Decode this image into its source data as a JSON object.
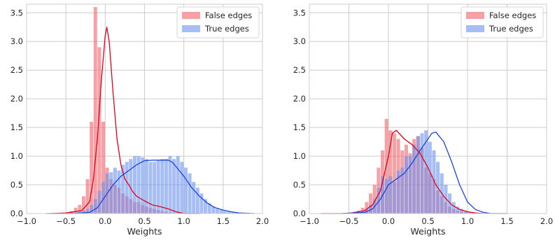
{
  "colors": {
    "false_edges": "#f0626b",
    "false_edges_line": "#e3001b",
    "true_edges": "#6d93ee",
    "true_edges_line": "#1a44e0",
    "grid": "#cccccc",
    "axes_edge": "#cccccc"
  },
  "chart_data": [
    {
      "type": "histogram",
      "xlabel": "Weights",
      "xlim": [
        -1.0,
        2.0
      ],
      "ylim": [
        0,
        3.65
      ],
      "x_ticks": [
        "−1.0",
        "−0.5",
        "0.0",
        "0.5",
        "1.0",
        "1.5",
        "2.0"
      ],
      "y_ticks": [
        "0.0",
        "0.5",
        "1.0",
        "1.5",
        "2.0",
        "2.5",
        "3.0",
        "3.5"
      ],
      "grid": true,
      "legend_position": "top-right",
      "series": [
        {
          "name": "False edges",
          "bin_start": -0.7,
          "bin_width": 0.05,
          "values": [
            0.0,
            0.0,
            0.01,
            0.01,
            0.02,
            0.04,
            0.1,
            0.15,
            0.3,
            0.6,
            1.6,
            3.6,
            2.9,
            1.6,
            0.8,
            0.6,
            0.5,
            0.45,
            0.35,
            0.3,
            0.25,
            0.2,
            0.2,
            0.15,
            0.12,
            0.1,
            0.08,
            0.06,
            0.04,
            0.03,
            0.02,
            0.01,
            0.01,
            0.0,
            0.0,
            0.0,
            0.0,
            0.0,
            0.0,
            0.0,
            0.0,
            0.0,
            0.0,
            0.0,
            0.0,
            0.0,
            0.0,
            0.0,
            0.0,
            0.0,
            0.0,
            0.0,
            0.0,
            0.0
          ],
          "kde": [
            [
              -0.7,
              0.0
            ],
            [
              -0.5,
              0.01
            ],
            [
              -0.3,
              0.05
            ],
            [
              -0.2,
              0.2
            ],
            [
              -0.15,
              0.6
            ],
            [
              -0.1,
              1.3
            ],
            [
              -0.05,
              2.3
            ],
            [
              0.0,
              3.1
            ],
            [
              0.02,
              3.25
            ],
            [
              0.05,
              3.0
            ],
            [
              0.1,
              2.1
            ],
            [
              0.15,
              1.3
            ],
            [
              0.2,
              0.85
            ],
            [
              0.25,
              0.6
            ],
            [
              0.3,
              0.5
            ],
            [
              0.35,
              0.38
            ],
            [
              0.4,
              0.3
            ],
            [
              0.5,
              0.22
            ],
            [
              0.6,
              0.15
            ],
            [
              0.7,
              0.12
            ],
            [
              0.8,
              0.08
            ],
            [
              0.9,
              0.03
            ],
            [
              1.0,
              0.0
            ],
            [
              1.1,
              0.0
            ],
            [
              1.2,
              0.0
            ]
          ]
        },
        {
          "name": "True edges",
          "bin_start": -0.7,
          "bin_width": 0.05,
          "values": [
            0.0,
            0.0,
            0.0,
            0.0,
            0.01,
            0.02,
            0.02,
            0.03,
            0.05,
            0.08,
            0.15,
            0.25,
            0.4,
            0.55,
            0.7,
            0.72,
            0.8,
            0.75,
            0.85,
            0.9,
            0.95,
            1.0,
            1.0,
            0.98,
            0.95,
            0.9,
            0.9,
            0.92,
            0.95,
            0.95,
            1.0,
            0.95,
            1.0,
            0.9,
            0.8,
            0.7,
            0.55,
            0.45,
            0.35,
            0.25,
            0.18,
            0.12,
            0.08,
            0.06,
            0.04,
            0.03,
            0.02,
            0.01,
            0.01,
            0.0,
            0.0,
            0.0,
            0.0,
            0.0
          ],
          "kde": [
            [
              -0.75,
              0.0
            ],
            [
              -0.4,
              0.0
            ],
            [
              -0.2,
              0.02
            ],
            [
              -0.1,
              0.1
            ],
            [
              0.0,
              0.3
            ],
            [
              0.1,
              0.5
            ],
            [
              0.2,
              0.65
            ],
            [
              0.3,
              0.75
            ],
            [
              0.4,
              0.85
            ],
            [
              0.5,
              0.92
            ],
            [
              0.6,
              0.93
            ],
            [
              0.7,
              0.93
            ],
            [
              0.8,
              0.93
            ],
            [
              0.85,
              0.9
            ],
            [
              0.9,
              0.82
            ],
            [
              1.0,
              0.65
            ],
            [
              1.1,
              0.45
            ],
            [
              1.2,
              0.3
            ],
            [
              1.3,
              0.18
            ],
            [
              1.4,
              0.1
            ],
            [
              1.5,
              0.06
            ],
            [
              1.6,
              0.03
            ],
            [
              1.7,
              0.01
            ],
            [
              1.9,
              0.0
            ]
          ]
        }
      ]
    },
    {
      "type": "histogram",
      "xlabel": "Weights",
      "xlim": [
        -1.0,
        2.0
      ],
      "ylim": [
        0,
        3.65
      ],
      "x_ticks": [
        "−1.0",
        "−0.5",
        "0.0",
        "0.5",
        "1.0",
        "1.5",
        "2.0"
      ],
      "y_ticks": [
        "0.0",
        "0.5",
        "1.0",
        "1.5",
        "2.0",
        "2.5",
        "3.0",
        "3.5"
      ],
      "grid": true,
      "legend_position": "top-right",
      "series": [
        {
          "name": "False edges",
          "bin_start": -0.7,
          "bin_width": 0.05,
          "values": [
            0.0,
            0.0,
            0.0,
            0.01,
            0.02,
            0.03,
            0.05,
            0.1,
            0.2,
            0.35,
            0.5,
            0.8,
            1.1,
            1.65,
            1.45,
            1.4,
            1.3,
            1.1,
            1.2,
            1.05,
            1.3,
            1.35,
            1.15,
            0.8,
            0.7,
            0.6,
            0.4,
            0.3,
            0.2,
            0.12,
            0.08,
            0.05,
            0.03,
            0.02,
            0.01,
            0.0,
            0.0,
            0.0,
            0.0,
            0.0,
            0.0,
            0.0,
            0.0,
            0.0,
            0.0,
            0.0,
            0.0,
            0.0,
            0.0,
            0.0,
            0.0,
            0.0,
            0.0,
            0.0
          ],
          "kde": [
            [
              -0.85,
              0.0
            ],
            [
              -0.5,
              0.0
            ],
            [
              -0.3,
              0.05
            ],
            [
              -0.2,
              0.15
            ],
            [
              -0.1,
              0.4
            ],
            [
              0.0,
              1.0
            ],
            [
              0.05,
              1.4
            ],
            [
              0.1,
              1.45
            ],
            [
              0.2,
              1.3
            ],
            [
              0.3,
              1.2
            ],
            [
              0.4,
              1.05
            ],
            [
              0.5,
              0.8
            ],
            [
              0.6,
              0.5
            ],
            [
              0.7,
              0.3
            ],
            [
              0.8,
              0.15
            ],
            [
              0.9,
              0.07
            ],
            [
              1.0,
              0.03
            ],
            [
              1.1,
              0.01
            ],
            [
              1.2,
              0.0
            ]
          ]
        },
        {
          "name": "True edges",
          "bin_start": -0.7,
          "bin_width": 0.05,
          "values": [
            0.0,
            0.0,
            0.0,
            0.0,
            0.0,
            0.01,
            0.02,
            0.04,
            0.07,
            0.15,
            0.25,
            0.45,
            0.65,
            0.6,
            0.65,
            0.55,
            0.75,
            0.8,
            1.0,
            1.0,
            1.2,
            1.35,
            1.4,
            1.45,
            1.25,
            1.1,
            0.9,
            0.7,
            0.5,
            0.35,
            0.2,
            0.12,
            0.08,
            0.05,
            0.03,
            0.02,
            0.01,
            0.0,
            0.0,
            0.0,
            0.0,
            0.0,
            0.0,
            0.0,
            0.0,
            0.0,
            0.0,
            0.0,
            0.0,
            0.0,
            0.0,
            0.0,
            0.0,
            0.0
          ],
          "kde": [
            [
              -0.6,
              0.0
            ],
            [
              -0.3,
              0.02
            ],
            [
              -0.2,
              0.08
            ],
            [
              -0.1,
              0.25
            ],
            [
              0.0,
              0.5
            ],
            [
              0.1,
              0.6
            ],
            [
              0.2,
              0.7
            ],
            [
              0.3,
              0.88
            ],
            [
              0.4,
              1.1
            ],
            [
              0.5,
              1.3
            ],
            [
              0.55,
              1.4
            ],
            [
              0.6,
              1.42
            ],
            [
              0.7,
              1.25
            ],
            [
              0.8,
              0.9
            ],
            [
              0.9,
              0.5
            ],
            [
              1.0,
              0.2
            ],
            [
              1.1,
              0.07
            ],
            [
              1.2,
              0.02
            ],
            [
              1.3,
              0.0
            ],
            [
              1.5,
              0.0
            ]
          ]
        }
      ]
    }
  ]
}
